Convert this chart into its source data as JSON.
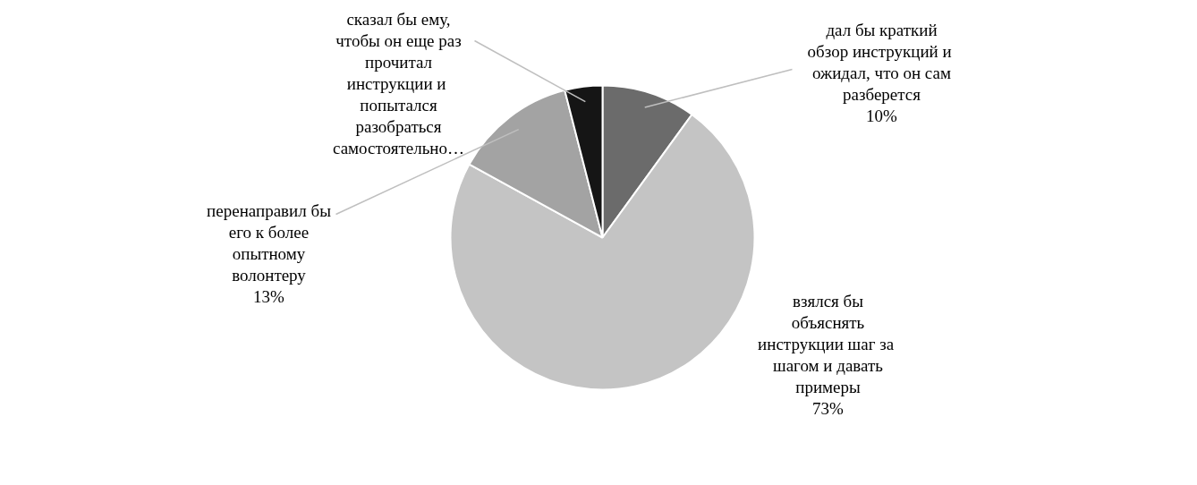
{
  "chart_data": {
    "type": "pie",
    "categories": [
      "дал бы краткий\nобзор инструкций  и\nожидал, что он сам\nразберется",
      "взялся бы\nобъяснять\nинструкции  шаг за\nшагом и давать\nпримеры",
      "перенаправил бы\nего к более\nопытному\nволонтеру",
      "сказал бы ему,\nчтобы он еще раз\nпрочитал\nинструкции  и\nпопытался\nразобраться\nсамостоятельно…"
    ],
    "values": [
      10,
      73,
      13,
      4
    ],
    "value_labels": [
      "10%",
      "73%",
      "13%",
      null
    ],
    "colors": [
      "#6b6b6b",
      "#c4c4c4",
      "#a3a3a3",
      "#151515"
    ]
  }
}
